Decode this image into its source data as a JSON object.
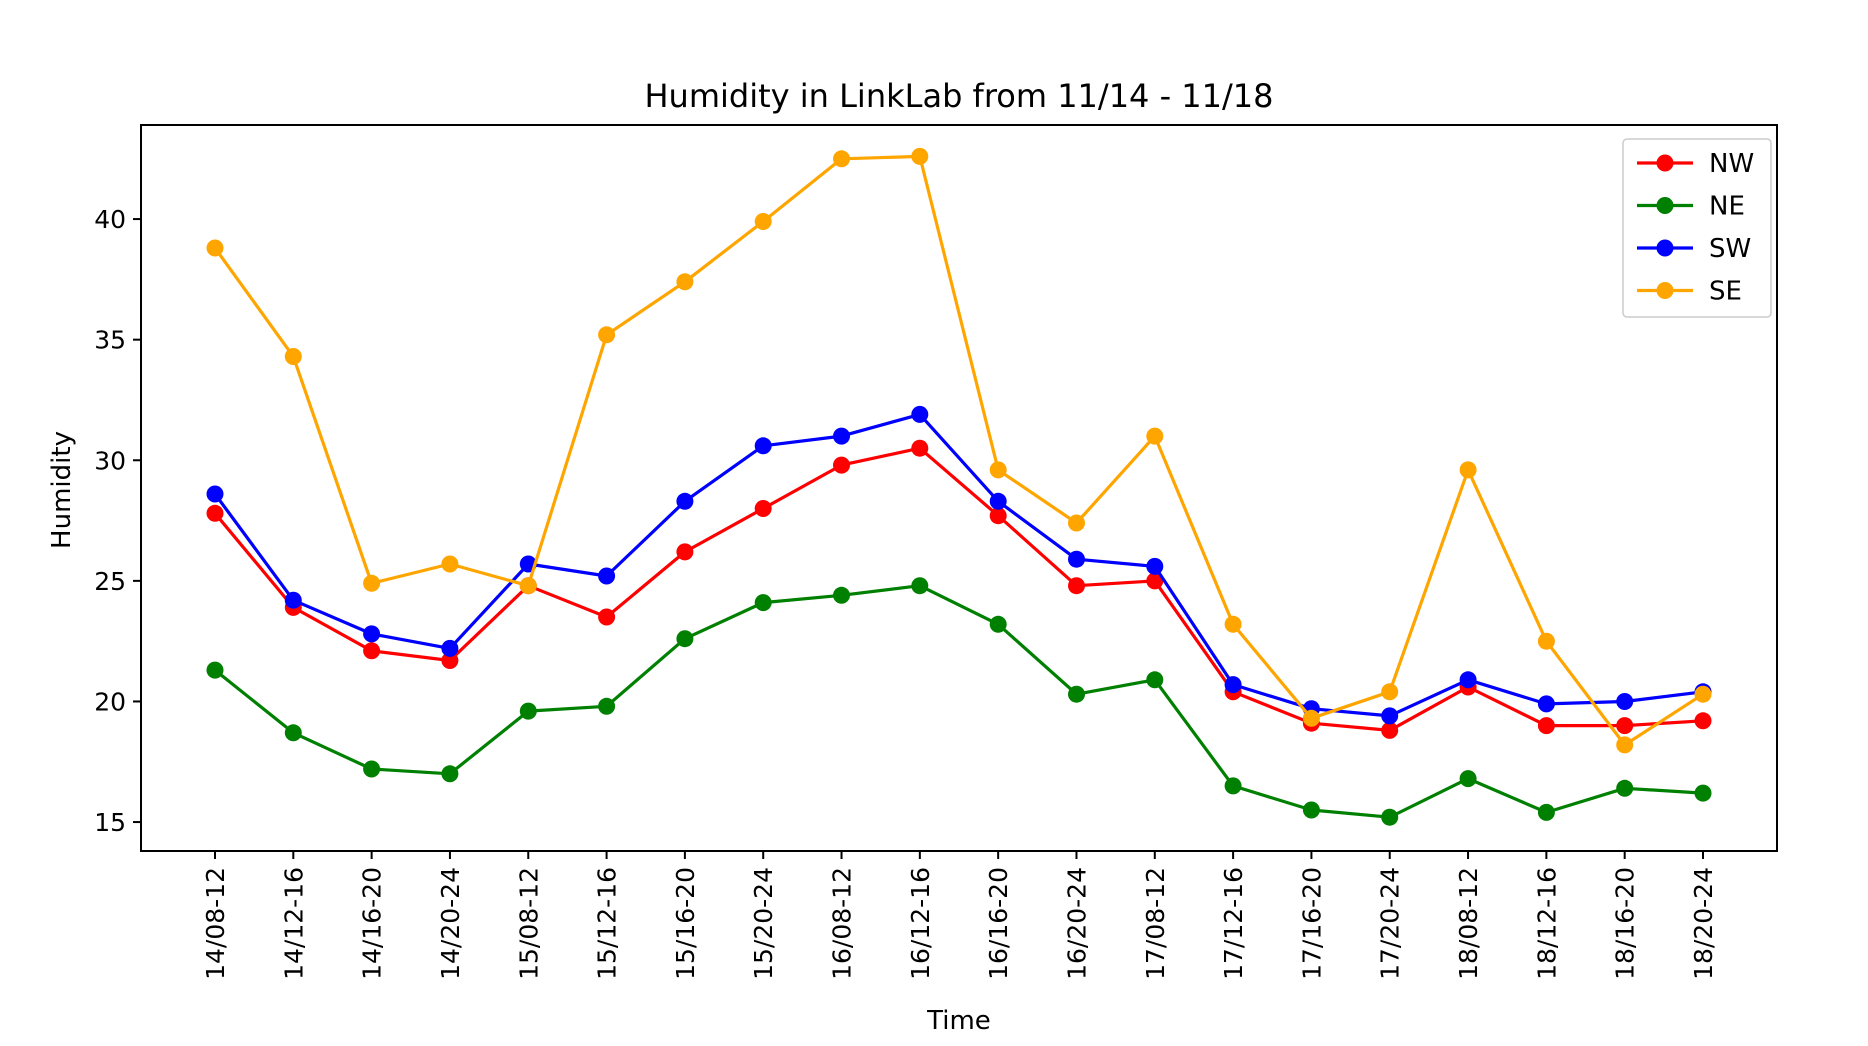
{
  "chart_data": {
    "type": "line",
    "title": "Humidity in LinkLab from 11/14 - 11/18",
    "xlabel": "Time",
    "ylabel": "Humidity",
    "categories": [
      "14/08-12",
      "14/12-16",
      "14/16-20",
      "14/20-24",
      "15/08-12",
      "15/12-16",
      "15/16-20",
      "15/20-24",
      "16/08-12",
      "16/12-16",
      "16/16-20",
      "16/20-24",
      "17/08-12",
      "17/12-16",
      "17/16-20",
      "17/20-24",
      "18/08-12",
      "18/12-16",
      "18/16-20",
      "18/20-24"
    ],
    "yticks": [
      15,
      20,
      25,
      30,
      35,
      40
    ],
    "ylim": [
      13.8,
      43.9
    ],
    "grid": false,
    "legend_position": "top-right",
    "marker": "circle",
    "series": [
      {
        "name": "NW",
        "color": "#ff0000",
        "values": [
          27.8,
          23.9,
          22.1,
          21.7,
          24.8,
          23.5,
          26.2,
          28.0,
          29.8,
          30.5,
          27.7,
          24.8,
          25.0,
          20.4,
          19.1,
          18.8,
          20.6,
          19.0,
          19.0,
          19.2
        ]
      },
      {
        "name": "NE",
        "color": "#008000",
        "values": [
          21.3,
          18.7,
          17.2,
          17.0,
          19.6,
          19.8,
          22.6,
          24.1,
          24.4,
          24.8,
          23.2,
          20.3,
          20.9,
          16.5,
          15.5,
          15.2,
          16.8,
          15.4,
          16.4,
          16.2
        ]
      },
      {
        "name": "SW",
        "color": "#0000ff",
        "values": [
          28.6,
          24.2,
          22.8,
          22.2,
          25.7,
          25.2,
          28.3,
          30.6,
          31.0,
          31.9,
          28.3,
          25.9,
          25.6,
          20.7,
          19.7,
          19.4,
          20.9,
          19.9,
          20.0,
          20.4
        ]
      },
      {
        "name": "SE",
        "color": "#ffa500",
        "values": [
          38.8,
          34.3,
          24.9,
          25.7,
          24.8,
          35.2,
          37.4,
          39.9,
          42.5,
          42.6,
          29.6,
          27.4,
          31.0,
          23.2,
          19.3,
          20.4,
          29.6,
          22.5,
          18.2,
          20.3
        ]
      }
    ]
  }
}
